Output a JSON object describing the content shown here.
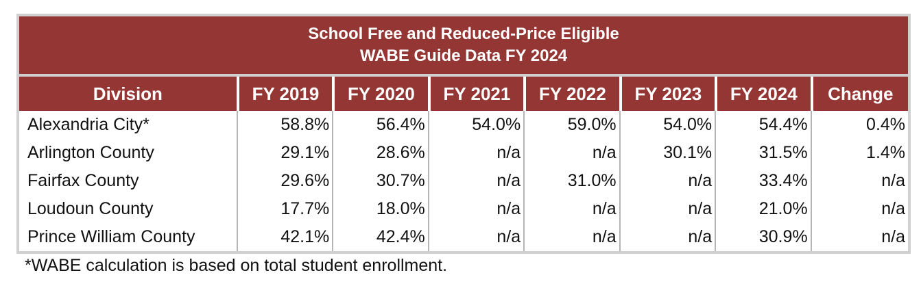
{
  "title": {
    "line1": "School Free and Reduced-Price Eligible",
    "line2": "WABE Guide Data FY 2024"
  },
  "columns": [
    "Division",
    "FY 2019",
    "FY 2020",
    "FY 2021",
    "FY 2022",
    "FY 2023",
    "FY 2024",
    "Change"
  ],
  "rows": [
    [
      "Alexandria City*",
      "58.8%",
      "56.4%",
      "54.0%",
      "59.0%",
      "54.0%",
      "54.4%",
      "0.4%"
    ],
    [
      "Arlington County",
      "29.1%",
      "28.6%",
      "n/a",
      "n/a",
      "30.1%",
      "31.5%",
      "1.4%"
    ],
    [
      "Fairfax County",
      "29.6%",
      "30.7%",
      "n/a",
      "31.0%",
      "n/a",
      "33.4%",
      "n/a"
    ],
    [
      "Loudoun County",
      "17.7%",
      "18.0%",
      "n/a",
      "n/a",
      "n/a",
      "21.0%",
      "n/a"
    ],
    [
      "Prince William County",
      "42.1%",
      "42.4%",
      "n/a",
      "n/a",
      "n/a",
      "30.9%",
      "n/a"
    ]
  ],
  "footnote": "*WABE calculation is based on total student enrollment.",
  "colors": {
    "header_bg": "#943634",
    "header_text": "#ffffff"
  }
}
